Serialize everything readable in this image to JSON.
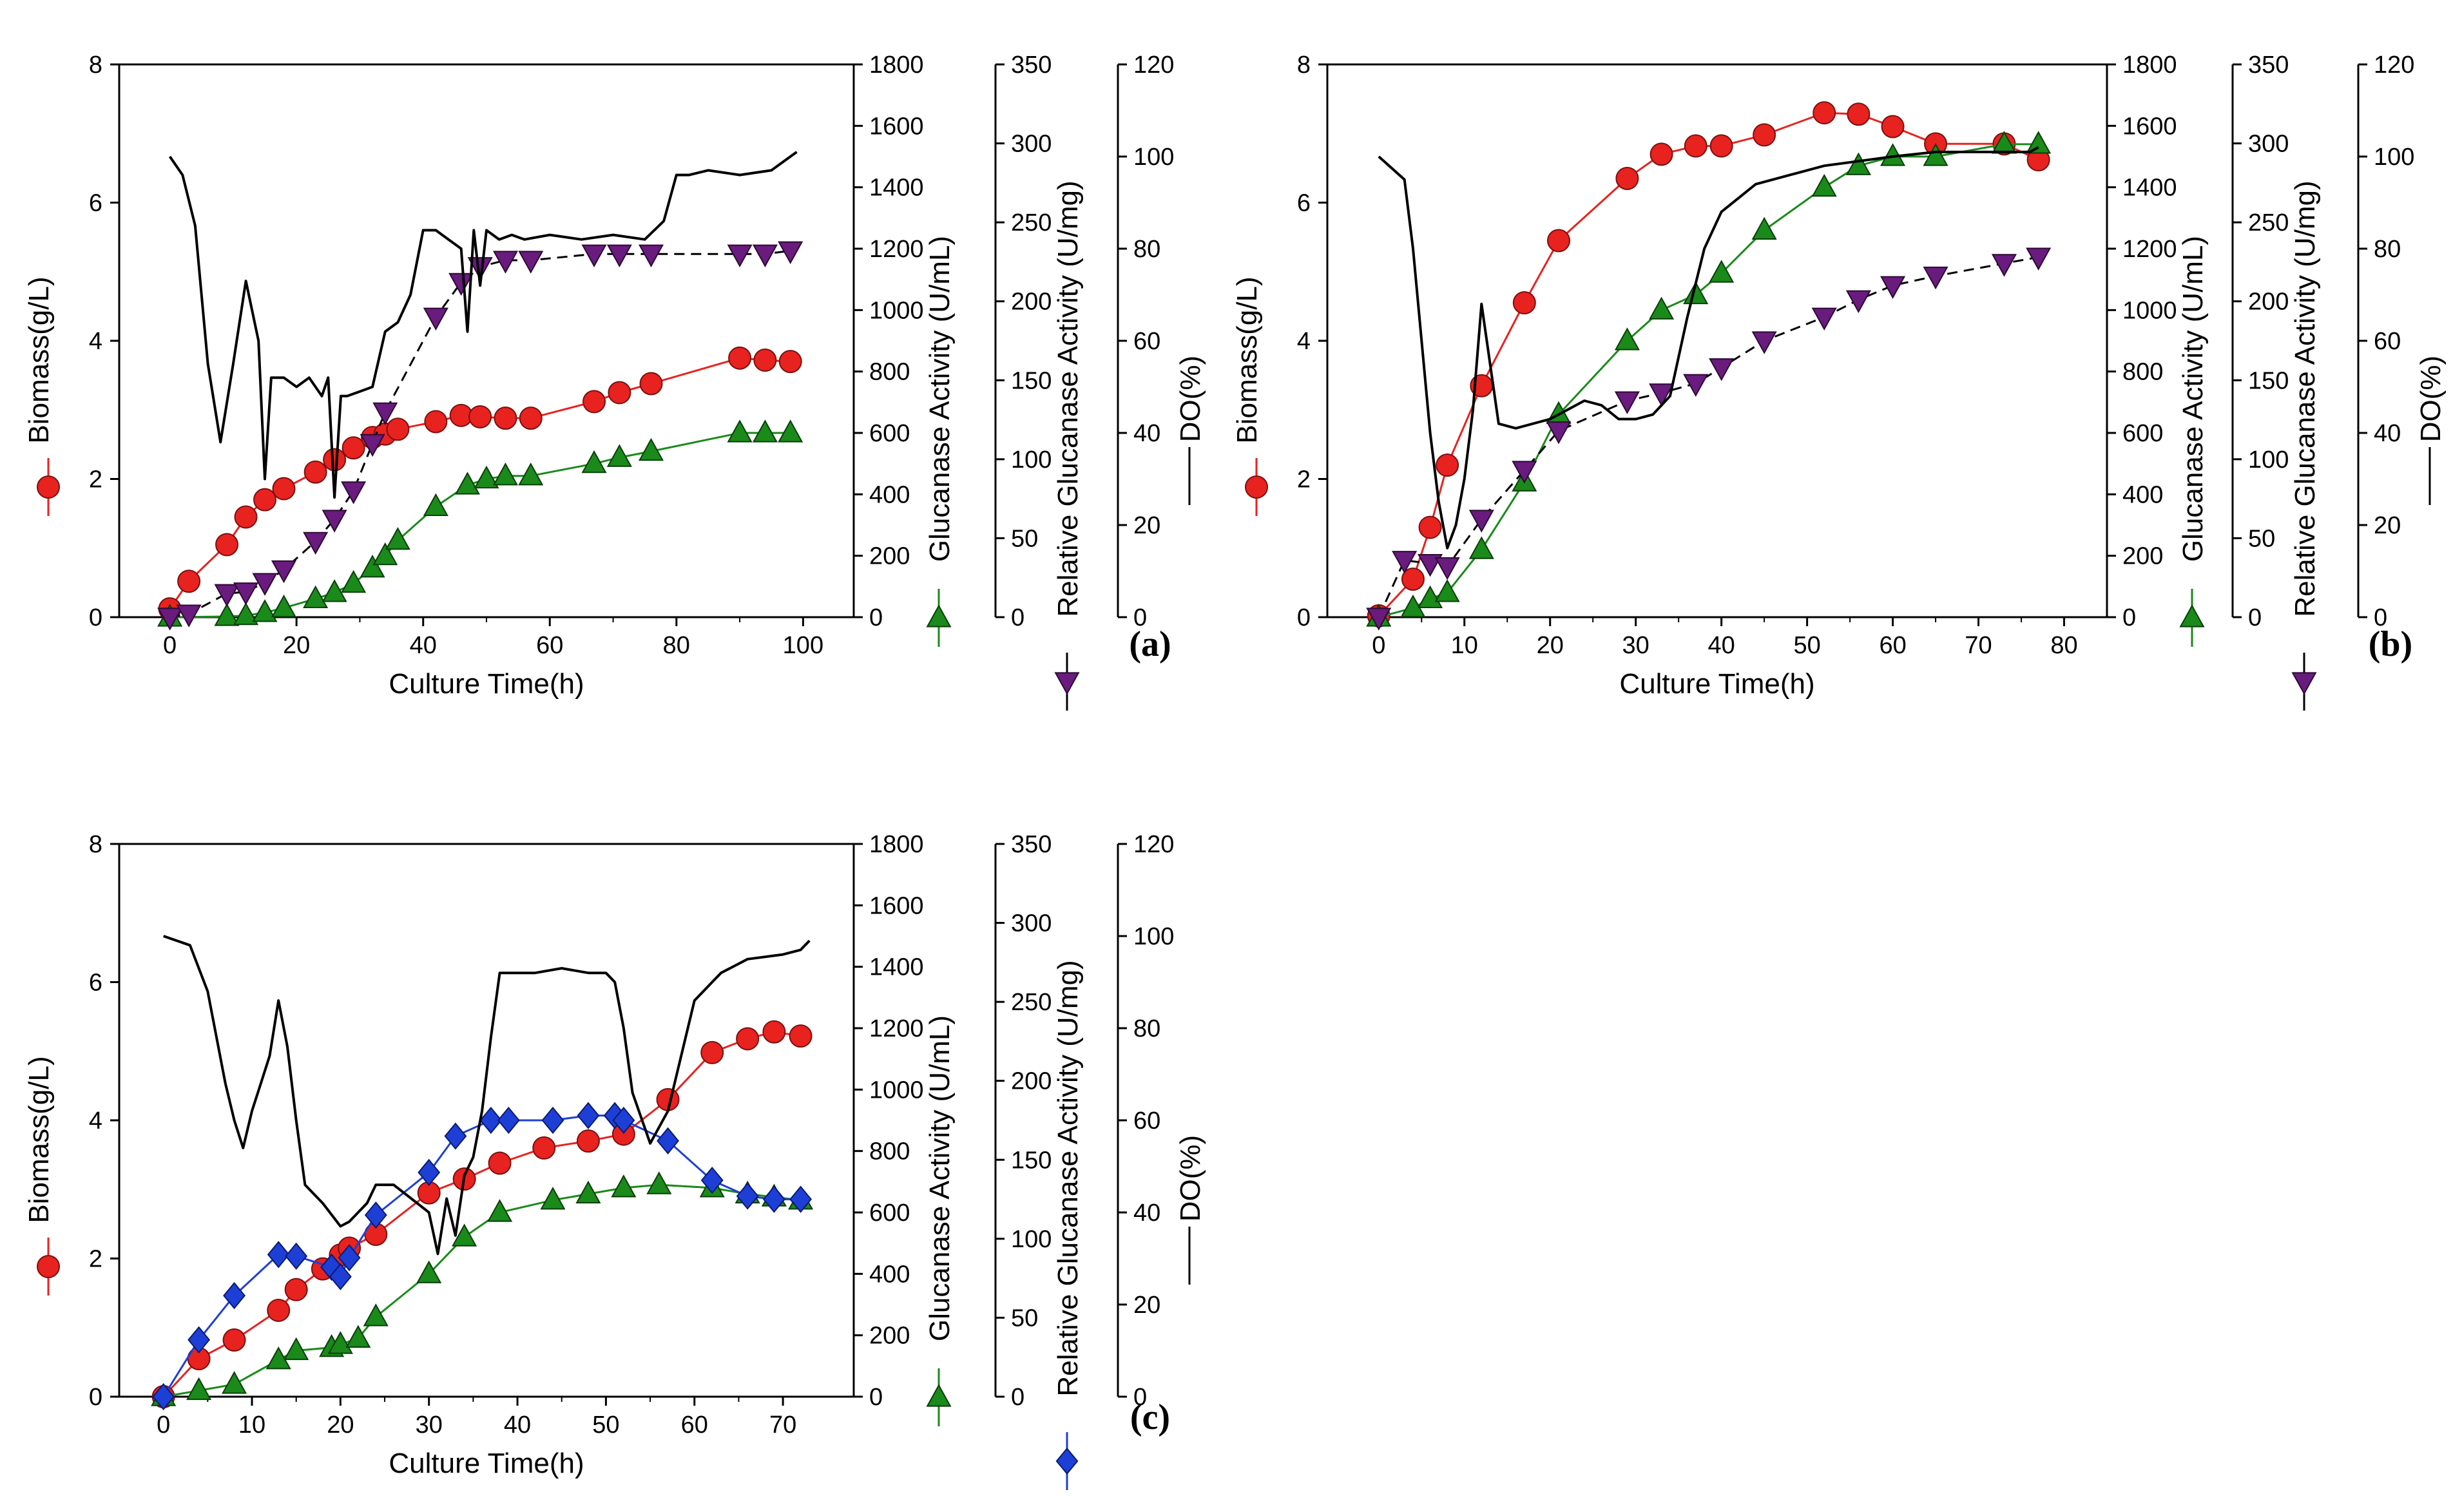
{
  "figure": {
    "colors": {
      "biomass": "#e8221f",
      "glucanase": "#1a8a1a",
      "relative_purple": "#6a1b7e",
      "relative_blue": "#1e3fd6",
      "do": "#000000",
      "axis": "#000000"
    }
  },
  "chart_data": [
    {
      "id": "a",
      "type": "line",
      "panel_label": "(a)",
      "xlabel": "Culture Time(h)",
      "xlim": [
        -8,
        108
      ],
      "xticks": [
        0,
        20,
        40,
        60,
        80,
        100
      ],
      "axes": [
        {
          "key": "biomass",
          "label": "Biomass(g/L)",
          "lim": [
            0,
            8
          ],
          "ticks": [
            0,
            2,
            4,
            6,
            8
          ],
          "side": "left"
        },
        {
          "key": "glucanase",
          "label": "Glucanase Activity (U/mL)",
          "lim": [
            0,
            1800
          ],
          "ticks": [
            0,
            200,
            400,
            600,
            800,
            1000,
            1200,
            1400,
            1600,
            1800
          ],
          "side": "right1"
        },
        {
          "key": "relative",
          "label": "Relative Glucanase Activity (U/mg)",
          "lim": [
            0,
            350
          ],
          "ticks": [
            0,
            50,
            100,
            150,
            200,
            250,
            300,
            350
          ],
          "side": "right2"
        },
        {
          "key": "do",
          "label": "DO(%)",
          "lim": [
            0,
            120
          ],
          "ticks": [
            0,
            20,
            40,
            60,
            80,
            100,
            120
          ],
          "side": "right3"
        }
      ],
      "series": [
        {
          "name": "Biomass",
          "axis": "biomass",
          "marker": "circle",
          "color": "#e8221f",
          "dashed": false,
          "x": [
            0,
            3,
            9,
            12,
            15,
            18,
            23,
            26,
            29,
            32,
            34,
            36,
            42,
            46,
            49,
            53,
            57,
            67,
            71,
            76,
            90,
            94,
            98
          ],
          "y": [
            0.12,
            0.52,
            1.05,
            1.45,
            1.7,
            1.86,
            2.1,
            2.28,
            2.45,
            2.6,
            2.65,
            2.72,
            2.83,
            2.92,
            2.9,
            2.88,
            2.88,
            3.12,
            3.25,
            3.38,
            3.75,
            3.72,
            3.7
          ]
        },
        {
          "name": "Glucanase Activity",
          "axis": "glucanase",
          "marker": "triangle-up",
          "color": "#1a8a1a",
          "dashed": false,
          "x": [
            0,
            9,
            12,
            15,
            18,
            23,
            26,
            29,
            32,
            34,
            36,
            42,
            47,
            50,
            53,
            57,
            67,
            71,
            76,
            90,
            94,
            98
          ],
          "y": [
            0,
            2,
            5,
            15,
            30,
            60,
            80,
            110,
            160,
            200,
            250,
            360,
            430,
            450,
            460,
            460,
            500,
            520,
            540,
            600,
            600,
            600
          ]
        },
        {
          "name": "Relative Glucanase Activity",
          "axis": "relative",
          "marker": "triangle-down",
          "color": "#6a1b7e",
          "dashed": true,
          "x": [
            0,
            3,
            9,
            12,
            15,
            18,
            23,
            26,
            29,
            32,
            34,
            42,
            46,
            49,
            53,
            57,
            67,
            71,
            76,
            90,
            94,
            98
          ],
          "y": [
            0,
            2,
            15,
            16,
            22,
            30,
            48,
            62,
            80,
            110,
            130,
            190,
            212,
            222,
            226,
            226,
            230,
            230,
            230,
            230,
            230,
            232
          ]
        },
        {
          "name": "DO",
          "axis": "do",
          "marker": "none",
          "color": "#000000",
          "dashed": false,
          "x": [
            0,
            2,
            4,
            6,
            8,
            10,
            12,
            14,
            15,
            16,
            18,
            20,
            22,
            24,
            25,
            26,
            27,
            28,
            30,
            32,
            34,
            36,
            38,
            40,
            42,
            44,
            46,
            47,
            48,
            49,
            50,
            52,
            54,
            56,
            60,
            65,
            70,
            75,
            78,
            80,
            82,
            85,
            90,
            95,
            98,
            99
          ],
          "y": [
            100,
            96,
            85,
            55,
            38,
            55,
            73,
            60,
            30,
            52,
            52,
            50,
            52,
            48,
            52,
            26,
            48,
            48,
            49,
            50,
            62,
            64,
            70,
            84,
            84,
            82,
            80,
            62,
            84,
            72,
            84,
            82,
            83,
            82,
            83,
            82,
            83,
            82,
            86,
            96,
            96,
            97,
            96,
            97,
            100,
            101
          ]
        }
      ]
    },
    {
      "id": "b",
      "type": "line",
      "panel_label": "(b)",
      "xlabel": "Culture Time(h)",
      "xlim": [
        -6,
        85
      ],
      "xticks": [
        0,
        10,
        20,
        30,
        40,
        50,
        60,
        70,
        80
      ],
      "axes": [
        {
          "key": "biomass",
          "label": "Biomass(g/L)",
          "lim": [
            0,
            8
          ],
          "ticks": [
            0,
            2,
            4,
            6,
            8
          ],
          "side": "left"
        },
        {
          "key": "glucanase",
          "label": "Glucanase Activity (U/mL)",
          "lim": [
            0,
            1800
          ],
          "ticks": [
            0,
            200,
            400,
            600,
            800,
            1000,
            1200,
            1400,
            1600,
            1800
          ],
          "side": "right1"
        },
        {
          "key": "relative",
          "label": "Relative Glucanase Activity (U/mg)",
          "lim": [
            0,
            350
          ],
          "ticks": [
            0,
            50,
            100,
            150,
            200,
            250,
            300,
            350
          ],
          "side": "right2"
        },
        {
          "key": "do",
          "label": "DO(%)",
          "lim": [
            0,
            120
          ],
          "ticks": [
            0,
            20,
            40,
            60,
            80,
            100,
            120
          ],
          "side": "right3"
        }
      ],
      "series": [
        {
          "name": "Biomass",
          "axis": "biomass",
          "marker": "circle",
          "color": "#e8221f",
          "dashed": false,
          "x": [
            0,
            4,
            6,
            8,
            12,
            17,
            21,
            29,
            33,
            37,
            40,
            45,
            52,
            56,
            60,
            65,
            73,
            77
          ],
          "y": [
            0.02,
            0.55,
            1.3,
            2.2,
            3.35,
            4.55,
            5.45,
            6.35,
            6.7,
            6.82,
            6.82,
            6.98,
            7.3,
            7.28,
            7.1,
            6.85,
            6.85,
            6.62
          ]
        },
        {
          "name": "Glucanase Activity",
          "axis": "glucanase",
          "marker": "triangle-up",
          "color": "#1a8a1a",
          "dashed": false,
          "x": [
            0,
            4,
            6,
            8,
            12,
            17,
            21,
            29,
            33,
            37,
            40,
            45,
            52,
            56,
            60,
            65,
            73,
            77
          ],
          "y": [
            0,
            30,
            60,
            80,
            220,
            440,
            660,
            900,
            1000,
            1050,
            1120,
            1260,
            1400,
            1470,
            1500,
            1500,
            1540,
            1540
          ]
        },
        {
          "name": "Relative Glucanase Activity",
          "axis": "relative",
          "marker": "triangle-down",
          "color": "#6a1b7e",
          "dashed": true,
          "x": [
            0,
            3,
            6,
            8,
            12,
            17,
            21,
            29,
            33,
            37,
            40,
            45,
            52,
            56,
            60,
            65,
            73,
            77
          ],
          "y": [
            0,
            36,
            34,
            32,
            62,
            93,
            118,
            137,
            142,
            148,
            158,
            175,
            190,
            201,
            210,
            216,
            224,
            228
          ]
        },
        {
          "name": "DO",
          "axis": "do",
          "marker": "none",
          "color": "#000000",
          "dashed": false,
          "x": [
            0,
            3,
            4,
            5,
            6,
            7,
            8,
            9,
            10,
            11,
            12,
            13,
            14,
            16,
            20,
            22,
            24,
            26,
            28,
            30,
            32,
            34,
            36,
            38,
            40,
            42,
            44,
            48,
            52,
            56,
            60,
            65,
            70,
            73,
            76,
            77
          ],
          "y": [
            100,
            95,
            80,
            60,
            40,
            25,
            15,
            20,
            30,
            45,
            68,
            55,
            42,
            41,
            43,
            45,
            47,
            46,
            43,
            43,
            44,
            48,
            65,
            80,
            88,
            91,
            94,
            96,
            98,
            99,
            100,
            101,
            101,
            101,
            101,
            102
          ]
        }
      ]
    },
    {
      "id": "c",
      "type": "line",
      "panel_label": "(c)",
      "xlabel": "Culture Time(h)",
      "xlim": [
        -5,
        78
      ],
      "xticks": [
        0,
        10,
        20,
        30,
        40,
        50,
        60,
        70
      ],
      "axes": [
        {
          "key": "biomass",
          "label": "Biomass(g/L)",
          "lim": [
            0,
            8
          ],
          "ticks": [
            0,
            2,
            4,
            6,
            8
          ],
          "side": "left"
        },
        {
          "key": "glucanase",
          "label": "Glucanase Activity (U/mL)",
          "lim": [
            0,
            1800
          ],
          "ticks": [
            0,
            200,
            400,
            600,
            800,
            1000,
            1200,
            1400,
            1600,
            1800
          ],
          "side": "right1"
        },
        {
          "key": "relative",
          "label": "Relative Glucanase Activity (U/mg)",
          "lim": [
            0,
            350
          ],
          "ticks": [
            0,
            50,
            100,
            150,
            200,
            250,
            300,
            350
          ],
          "side": "right2"
        },
        {
          "key": "do",
          "label": "DO(%)",
          "lim": [
            0,
            120
          ],
          "ticks": [
            0,
            20,
            40,
            60,
            80,
            100,
            120
          ],
          "side": "right3"
        }
      ],
      "series": [
        {
          "name": "Biomass",
          "axis": "biomass",
          "marker": "circle",
          "color": "#e8221f",
          "dashed": false,
          "x": [
            0,
            4,
            8,
            13,
            15,
            18,
            20,
            21,
            24,
            30,
            34,
            38,
            43,
            48,
            52,
            57,
            62,
            66,
            69,
            72
          ],
          "y": [
            0,
            0.55,
            0.82,
            1.25,
            1.55,
            1.85,
            2.05,
            2.15,
            2.35,
            2.95,
            3.15,
            3.38,
            3.6,
            3.7,
            3.8,
            4.3,
            4.98,
            5.18,
            5.28,
            5.22
          ]
        },
        {
          "name": "Glucanase Activity",
          "axis": "glucanase",
          "marker": "triangle-up",
          "color": "#1a8a1a",
          "dashed": false,
          "x": [
            0,
            4,
            8,
            13,
            15,
            19,
            20,
            22,
            24,
            30,
            34,
            38,
            44,
            48,
            52,
            56,
            62,
            66,
            69,
            72
          ],
          "y": [
            0,
            20,
            40,
            120,
            150,
            160,
            170,
            190,
            260,
            400,
            520,
            600,
            640,
            660,
            680,
            690,
            680,
            660,
            650,
            640
          ]
        },
        {
          "name": "Relative Glucanase Activity",
          "axis": "relative",
          "marker": "diamond",
          "color": "#1e3fd6",
          "dashed": false,
          "x": [
            0,
            4,
            8,
            13,
            15,
            19,
            20,
            21,
            24,
            30,
            33,
            37,
            39,
            44,
            48,
            51,
            52,
            57,
            62,
            66,
            69,
            72
          ],
          "y": [
            0,
            36,
            64,
            90,
            89,
            82,
            76,
            88,
            115,
            142,
            165,
            175,
            175,
            175,
            178,
            178,
            175,
            162,
            137,
            127,
            125,
            125
          ]
        },
        {
          "name": "DO",
          "axis": "do",
          "marker": "none",
          "color": "#000000",
          "dashed": false,
          "x": [
            0,
            3,
            5,
            7,
            8,
            9,
            10,
            11,
            12,
            13,
            14,
            15,
            16,
            18,
            20,
            21,
            22,
            23,
            24,
            26,
            28,
            30,
            31,
            32,
            33,
            34,
            35,
            36,
            37,
            38,
            40,
            42,
            45,
            48,
            50,
            51,
            52,
            53,
            55,
            57,
            60,
            63,
            66,
            70,
            72,
            73
          ],
          "y": [
            100,
            98,
            88,
            68,
            60,
            54,
            62,
            68,
            74,
            86,
            76,
            60,
            46,
            42,
            37,
            38,
            40,
            42,
            46,
            46,
            43,
            40,
            31,
            43,
            35,
            48,
            52,
            62,
            78,
            92,
            92,
            92,
            93,
            92,
            92,
            90,
            80,
            66,
            55,
            62,
            86,
            92,
            95,
            96,
            97,
            99
          ]
        }
      ]
    }
  ]
}
